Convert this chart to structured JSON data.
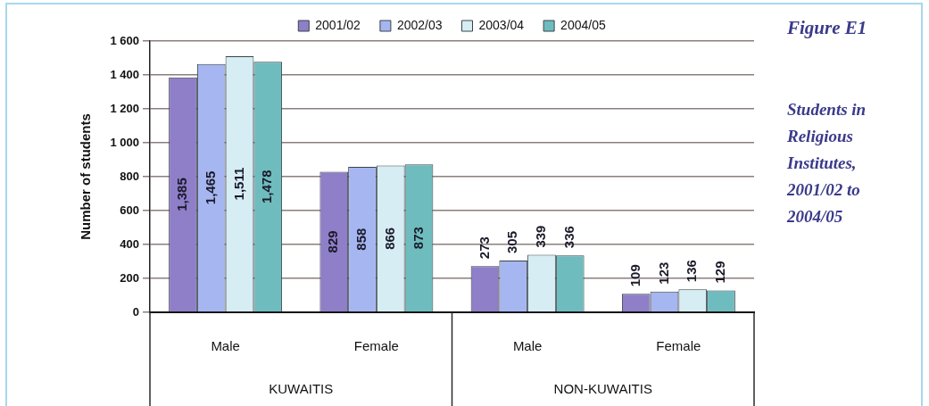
{
  "chart_data": {
    "type": "bar",
    "title": "Figure E1",
    "subtitle": "Students in Religious Institutes, 2001/02 to 2004/05",
    "ylabel": "Number of students",
    "categories": [
      "Male",
      "Female",
      "Male",
      "Female"
    ],
    "annotations": [
      "KUWAITIS",
      "NON-KUWAITIS"
    ],
    "series": [
      {
        "name": "2001/02",
        "color": "#8f7ec8",
        "values": [
          1385,
          829,
          273,
          109
        ],
        "value_labels": [
          "1,385",
          "829",
          "273",
          "109"
        ]
      },
      {
        "name": "2002/03",
        "color": "#a6b6f0",
        "values": [
          1465,
          858,
          305,
          123
        ],
        "value_labels": [
          "1,465",
          "858",
          "305",
          "123"
        ]
      },
      {
        "name": "2003/04",
        "color": "#d6edf4",
        "values": [
          1511,
          866,
          339,
          136
        ],
        "value_labels": [
          "1,511",
          "866",
          "339",
          "136"
        ]
      },
      {
        "name": "2004/05",
        "color": "#6fbcbf",
        "values": [
          1478,
          873,
          336,
          129
        ],
        "value_labels": [
          "1,478",
          "873",
          "336",
          "129"
        ]
      }
    ],
    "ylim": [
      0,
      1600
    ],
    "yticks": [
      0,
      200,
      400,
      600,
      800,
      {
        "value": 1000,
        "label": "1 000"
      },
      {
        "value": 1200,
        "label": "1 200"
      },
      {
        "value": 1400,
        "label": "1 400"
      },
      {
        "value": 1600,
        "label": "1 600"
      }
    ],
    "grid": "y",
    "legend": "top"
  }
}
